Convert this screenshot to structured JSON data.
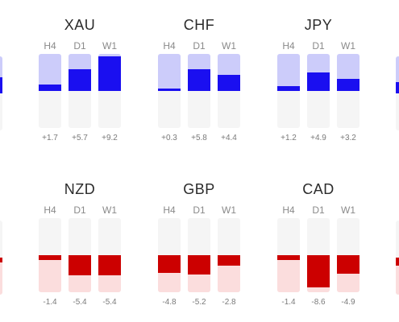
{
  "colors": {
    "positive": "#1a0ff0",
    "positive_pale": "#ccccfa",
    "negative": "#cc0000",
    "negative_pale": "#fbdddd",
    "track": "#f5f5f5"
  },
  "timeframes": [
    "H4",
    "D1",
    "W1"
  ],
  "panels": [
    {
      "currency": "XAU",
      "values": [
        "+1.7",
        "+5.7",
        "+9.2"
      ],
      "direction": "positive",
      "strength": [
        0.18,
        0.58,
        0.93
      ]
    },
    {
      "currency": "CHF",
      "values": [
        "+0.3",
        "+5.8",
        "+4.4"
      ],
      "direction": "positive",
      "strength": [
        0.04,
        0.58,
        0.44
      ]
    },
    {
      "currency": "JPY",
      "values": [
        "+1.2",
        "+4.9",
        "+3.2"
      ],
      "direction": "positive",
      "strength": [
        0.12,
        0.5,
        0.32
      ]
    },
    {
      "currency": "NZD",
      "values": [
        "-1.4",
        "-5.4",
        "-5.4"
      ],
      "direction": "negative",
      "strength": [
        0.14,
        0.54,
        0.54
      ]
    },
    {
      "currency": "GBP",
      "values": [
        "-4.8",
        "-5.2",
        "-2.8"
      ],
      "direction": "negative",
      "strength": [
        0.48,
        0.52,
        0.28
      ]
    },
    {
      "currency": "CAD",
      "values": [
        "-1.4",
        "-8.6",
        "-4.9"
      ],
      "direction": "negative",
      "strength": [
        0.14,
        0.86,
        0.49
      ]
    }
  ]
}
